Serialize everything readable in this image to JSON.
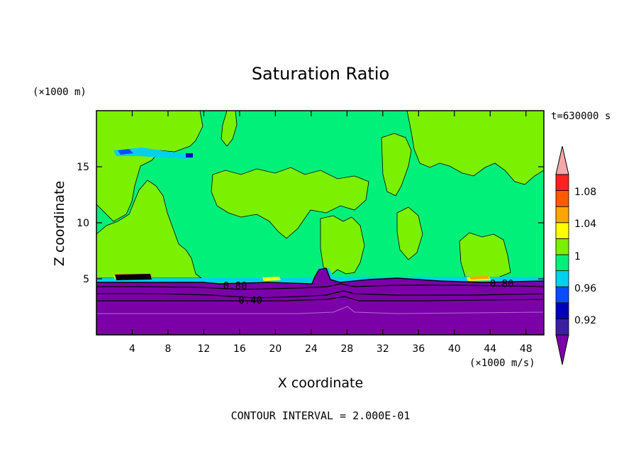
{
  "chart_data": {
    "type": "contour",
    "title": "Saturation Ratio",
    "xlabel": "X coordinate",
    "ylabel": "Z coordinate",
    "x_unit_label": "(×1000 m/s)",
    "y_unit_label": "(×1000 m)",
    "time_label": "t=630000 s",
    "footer": "CONTOUR INTERVAL = 2.000E-01",
    "xlim": [
      0,
      50
    ],
    "ylim": [
      0,
      20
    ],
    "x_ticks": [
      4,
      8,
      12,
      16,
      20,
      24,
      28,
      32,
      36,
      40,
      44,
      48
    ],
    "y_ticks": [
      5,
      10,
      15
    ],
    "contour_labels": [
      {
        "text": "0.80",
        "x": 15.5,
        "z": 4.4
      },
      {
        "text": "0.40",
        "x": 17.2,
        "z": 3.1
      },
      {
        "text": "0.80",
        "x": 45.3,
        "z": 4.6
      }
    ],
    "colorbar": {
      "labels": [
        "1.08",
        "1.04",
        "1",
        "0.96",
        "0.92"
      ],
      "levels": [
        {
          "upper": "0.90",
          "color": "#7b00a8"
        },
        {
          "upper": "0.92",
          "color": "#3a1fa0"
        },
        {
          "upper": "0.94",
          "color": "#0000b8"
        },
        {
          "upper": "0.96",
          "color": "#0a4cff"
        },
        {
          "upper": "0.98",
          "color": "#00d0f0"
        },
        {
          "upper": "1.00",
          "color": "#00f07a"
        },
        {
          "upper": "1.02",
          "color": "#7bf000"
        },
        {
          "upper": "1.04",
          "color": "#ffff00"
        },
        {
          "upper": "1.06",
          "color": "#ffa500"
        },
        {
          "upper": "1.08",
          "color": "#ff5a00"
        },
        {
          "upper": "1.10",
          "color": "#ff2020"
        },
        {
          "upper": "above",
          "color": "#f4a8a8"
        }
      ]
    },
    "colors": {
      "purple": "#7b00a8",
      "green": "#00f07a",
      "lime": "#7bf000",
      "cyan": "#00d0f0",
      "yellow": "#ffff00",
      "orange": "#ffa500"
    }
  }
}
